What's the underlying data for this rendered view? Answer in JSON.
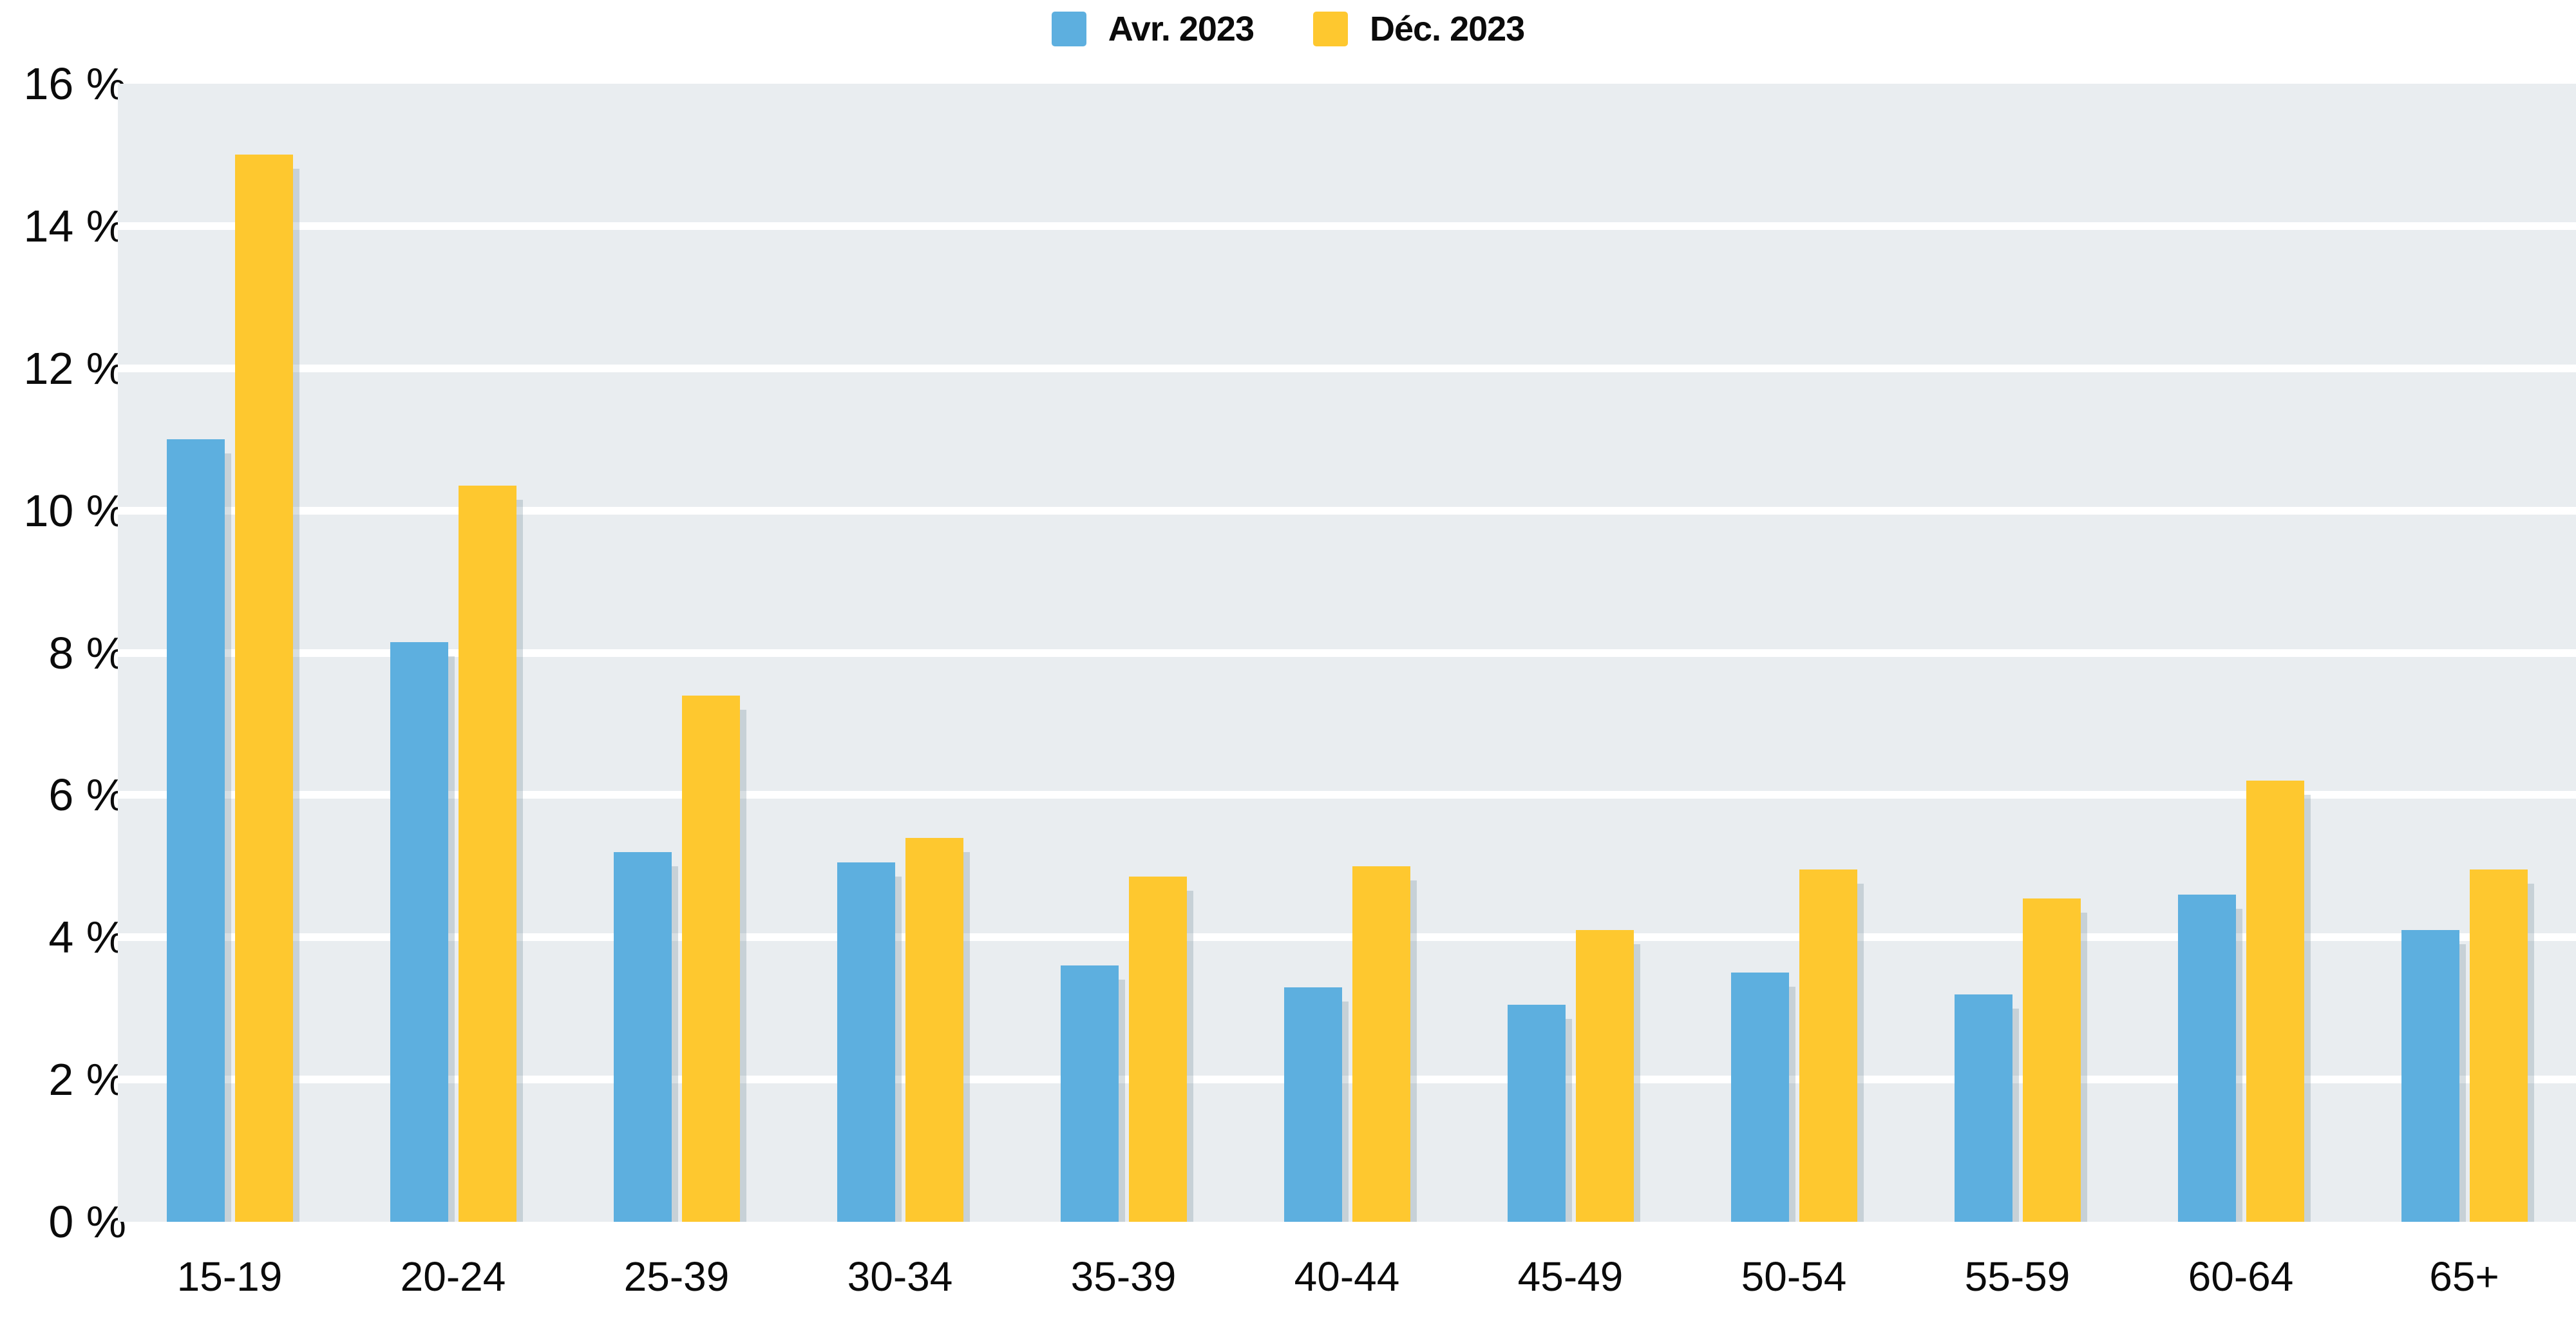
{
  "legend": {
    "items": [
      {
        "label": "Avr. 2023",
        "color": "#5DAFDF"
      },
      {
        "label": "Déc. 2023",
        "color": "#FEC82F"
      }
    ]
  },
  "y_axis": {
    "tick_labels": [
      "16 %",
      "14 %",
      "12 %",
      "10 %",
      "8 %",
      "6 %",
      "4 %",
      "2 %",
      "0 %"
    ],
    "tick_values": [
      16,
      14,
      12,
      10,
      8,
      6,
      4,
      2,
      0
    ],
    "max": 16
  },
  "chart_data": {
    "type": "bar",
    "title": "",
    "categories": [
      "15-19",
      "20-24",
      "25-39",
      "30-34",
      "35-39",
      "40-44",
      "45-49",
      "50-54",
      "55-59",
      "60-64",
      "65+"
    ],
    "series": [
      {
        "name": "Avr. 2023",
        "color": "#5DAFDF",
        "values": [
          11.0,
          8.15,
          5.2,
          5.05,
          3.6,
          3.3,
          3.05,
          3.5,
          3.2,
          4.6,
          4.1
        ]
      },
      {
        "name": "Déc. 2023",
        "color": "#FEC82F",
        "values": [
          15.0,
          10.35,
          7.4,
          5.4,
          4.85,
          5.0,
          4.1,
          4.95,
          4.55,
          6.2,
          4.95
        ]
      }
    ],
    "ylim": [
      0,
      16
    ],
    "ytick_format": "{value} %",
    "grid": "horizontal white lines every 2%",
    "gridline_color": "#ffffff",
    "plot_background": "#E9EDF0",
    "bar_shadow_color": "#CCD3D9",
    "legend_position": "top-center"
  }
}
